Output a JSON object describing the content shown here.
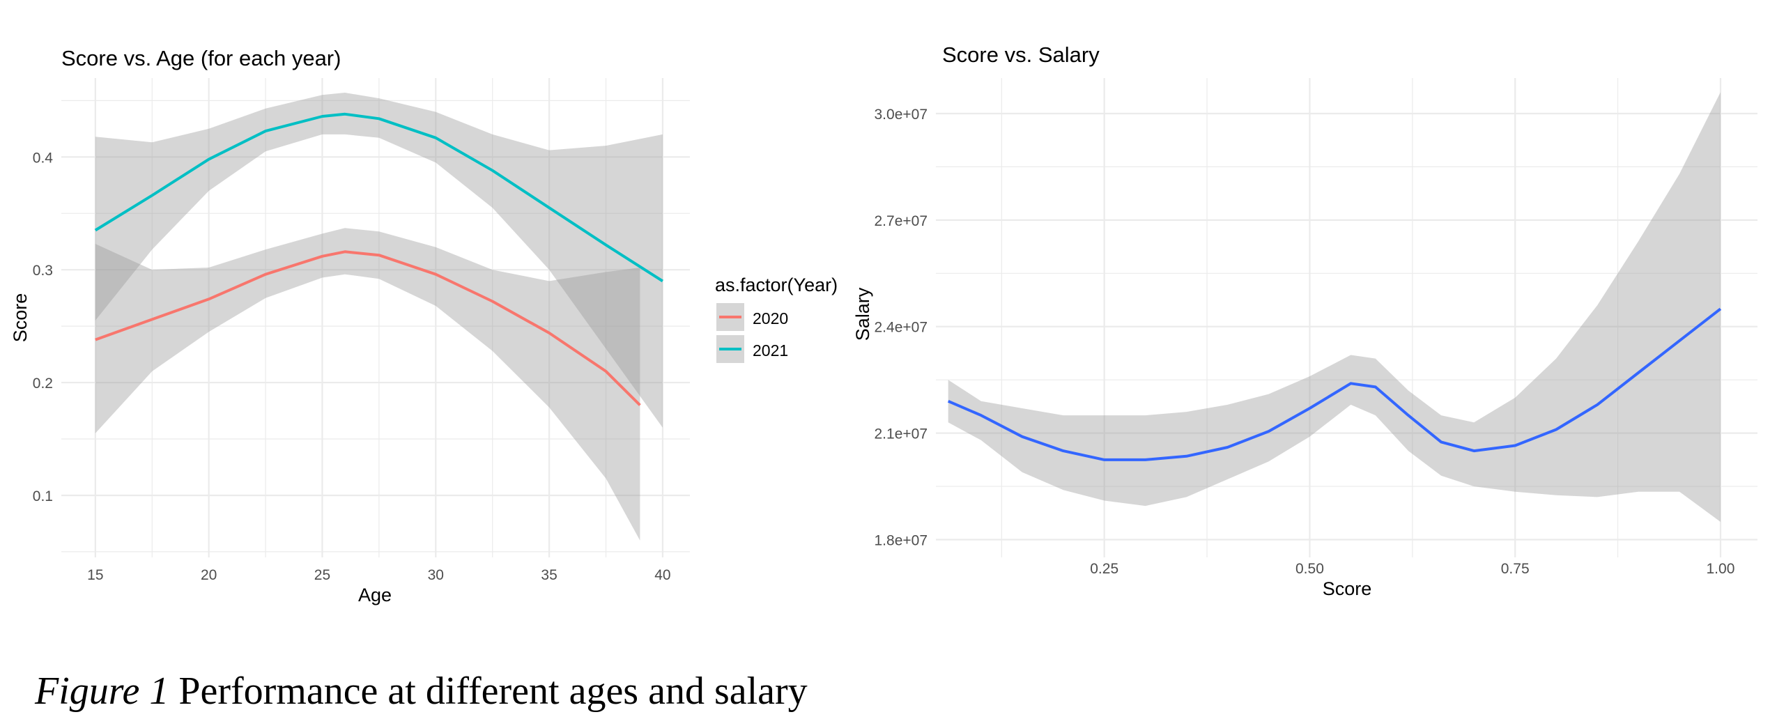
{
  "caption": {
    "label": "Figure 1",
    "text": "Performance at different ages and salary"
  },
  "colors": {
    "series_2020": "#F8766D",
    "series_2021": "#00BFC4",
    "smooth_line": "#3366FF",
    "ribbon": "#999999",
    "grid": "#EBEBEB",
    "axis_text": "#4D4D4D"
  },
  "chart_data": [
    {
      "type": "line",
      "title": "Score vs. Age (for each year)",
      "xlabel": "Age",
      "ylabel": "Score",
      "xlim": [
        13.5,
        41.2
      ],
      "ylim": [
        0.045,
        0.47
      ],
      "x_ticks": [
        15,
        20,
        25,
        30,
        35,
        40
      ],
      "y_ticks": [
        0.1,
        0.2,
        0.3,
        0.4
      ],
      "grid": true,
      "legend": {
        "title": "as.factor(Year)",
        "position": "right"
      },
      "series": [
        {
          "name": "2020",
          "x": [
            15,
            17.5,
            20,
            22.5,
            25,
            26,
            27.5,
            30,
            32.5,
            35,
            37.5,
            39
          ],
          "y": [
            0.238,
            0.256,
            0.274,
            0.296,
            0.312,
            0.316,
            0.313,
            0.296,
            0.272,
            0.244,
            0.21,
            0.18
          ],
          "lower": [
            0.155,
            0.21,
            0.245,
            0.275,
            0.293,
            0.296,
            0.292,
            0.268,
            0.228,
            0.178,
            0.115,
            0.06
          ],
          "upper": [
            0.323,
            0.3,
            0.302,
            0.318,
            0.332,
            0.337,
            0.334,
            0.32,
            0.3,
            0.29,
            0.298,
            0.302
          ]
        },
        {
          "name": "2021",
          "x": [
            15,
            17.5,
            20,
            22.5,
            25,
            26,
            27.5,
            30,
            32.5,
            35,
            37.5,
            40
          ],
          "y": [
            0.335,
            0.366,
            0.398,
            0.423,
            0.436,
            0.438,
            0.434,
            0.417,
            0.388,
            0.355,
            0.322,
            0.29
          ],
          "lower": [
            0.255,
            0.318,
            0.37,
            0.405,
            0.42,
            0.42,
            0.417,
            0.395,
            0.355,
            0.3,
            0.23,
            0.16
          ],
          "upper": [
            0.418,
            0.413,
            0.425,
            0.443,
            0.455,
            0.457,
            0.452,
            0.44,
            0.42,
            0.406,
            0.41,
            0.42
          ]
        }
      ]
    },
    {
      "type": "line",
      "title": "Score vs. Salary",
      "xlabel": "Score",
      "ylabel": "Salary",
      "xlim": [
        0.045,
        1.045
      ],
      "ylim": [
        17500000,
        31000000
      ],
      "x_ticks": [
        "0.25",
        "0.50",
        "0.75",
        "1.00"
      ],
      "y_ticks": [
        "1.8e+07",
        "2.1e+07",
        "2.4e+07",
        "2.7e+07",
        "3.0e+07"
      ],
      "grid": true,
      "series": [
        {
          "x": [
            0.06,
            0.1,
            0.15,
            0.2,
            0.25,
            0.3,
            0.35,
            0.4,
            0.45,
            0.5,
            0.55,
            0.58,
            0.62,
            0.66,
            0.7,
            0.75,
            0.8,
            0.85,
            0.9,
            0.95,
            1.0
          ],
          "y": [
            21900000,
            21500000,
            20900000,
            20500000,
            20250000,
            20250000,
            20350000,
            20600000,
            21050000,
            21700000,
            22400000,
            22300000,
            21500000,
            20750000,
            20500000,
            20650000,
            21100000,
            21800000,
            22700000,
            23600000,
            24500000
          ],
          "lower": [
            21300000,
            20800000,
            19900000,
            19400000,
            19100000,
            18950000,
            19200000,
            19700000,
            20200000,
            20900000,
            21800000,
            21500000,
            20500000,
            19800000,
            19500000,
            19350000,
            19250000,
            19200000,
            19350000,
            19350000,
            18500000
          ],
          "upper": [
            22500000,
            21900000,
            21700000,
            21500000,
            21500000,
            21500000,
            21600000,
            21800000,
            22100000,
            22600000,
            23200000,
            23100000,
            22200000,
            21500000,
            21300000,
            22000000,
            23100000,
            24600000,
            26400000,
            28300000,
            30600000
          ]
        }
      ]
    }
  ]
}
